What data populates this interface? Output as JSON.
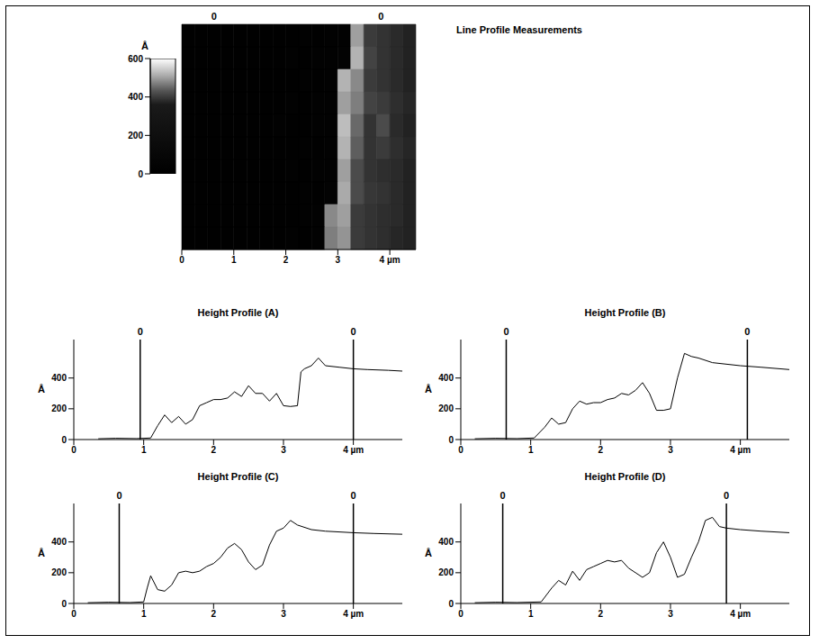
{
  "chart_data": [
    {
      "type": "heatmap",
      "title": "Line Profile Measurements",
      "x": [
        0.125,
        0.375,
        0.625,
        0.875,
        1.125,
        1.375,
        1.625,
        1.875,
        2.125,
        2.375,
        2.625,
        2.875,
        3.125,
        3.375,
        3.625,
        3.875,
        4.125,
        4.375
      ],
      "y": [
        4.275,
        3.825,
        3.375,
        2.925,
        2.475,
        2.025,
        1.575,
        1.125,
        0.675,
        0.225
      ],
      "cells": [
        [
          15,
          15,
          18,
          15,
          20,
          15,
          18,
          20,
          18,
          22,
          20,
          25,
          30,
          500,
          400,
          390,
          380,
          370
        ],
        [
          15,
          18,
          15,
          20,
          18,
          15,
          20,
          18,
          22,
          20,
          25,
          22,
          35,
          520,
          410,
          390,
          380,
          370
        ],
        [
          15,
          15,
          18,
          15,
          20,
          18,
          15,
          20,
          18,
          22,
          20,
          25,
          520,
          480,
          400,
          390,
          380,
          370
        ],
        [
          18,
          15,
          15,
          20,
          15,
          18,
          20,
          15,
          22,
          18,
          25,
          22,
          500,
          470,
          410,
          400,
          385,
          375
        ],
        [
          15,
          18,
          15,
          15,
          20,
          15,
          18,
          22,
          18,
          20,
          22,
          25,
          530,
          450,
          390,
          420,
          380,
          370
        ],
        [
          15,
          15,
          18,
          15,
          18,
          20,
          15,
          18,
          20,
          22,
          20,
          28,
          520,
          440,
          390,
          400,
          385,
          375
        ],
        [
          18,
          15,
          15,
          18,
          15,
          20,
          18,
          15,
          22,
          20,
          25,
          30,
          500,
          420,
          390,
          385,
          380,
          370
        ],
        [
          15,
          18,
          15,
          15,
          20,
          15,
          18,
          20,
          18,
          22,
          20,
          35,
          510,
          420,
          395,
          390,
          380,
          370
        ],
        [
          15,
          15,
          18,
          15,
          18,
          20,
          15,
          18,
          20,
          22,
          25,
          480,
          500,
          400,
          390,
          385,
          380,
          370
        ],
        [
          15,
          18,
          15,
          18,
          15,
          20,
          18,
          20,
          22,
          20,
          25,
          470,
          490,
          400,
          390,
          385,
          375,
          370
        ]
      ],
      "xlim": [
        0,
        4.5
      ],
      "ylim": [
        0,
        4.5
      ],
      "xticks": [
        0,
        1,
        2,
        3,
        {
          "value": 4,
          "label": "4 µm"
        }
      ],
      "tick_labels": "x",
      "colorbar": {
        "label": "Å",
        "range": [
          0,
          600
        ],
        "ticks": [
          0,
          200,
          400,
          600
        ]
      },
      "cursors": [
        {
          "x": 0.62,
          "label": "0"
        },
        {
          "x": 3.83,
          "label": "0"
        }
      ]
    },
    {
      "type": "line",
      "title": "Height Profile (A)",
      "y_label": "Å",
      "color": "#000000",
      "x": [
        0.35,
        0.6,
        0.9,
        1.1,
        1.2,
        1.3,
        1.4,
        1.5,
        1.6,
        1.7,
        1.8,
        1.9,
        2.0,
        2.1,
        2.2,
        2.3,
        2.4,
        2.5,
        2.6,
        2.7,
        2.8,
        2.9,
        3.0,
        3.1,
        3.2,
        3.25,
        3.3,
        3.4,
        3.5,
        3.6,
        3.8,
        4.0,
        4.2,
        4.5,
        4.7
      ],
      "values": [
        5,
        8,
        6,
        10,
        90,
        160,
        110,
        150,
        100,
        130,
        220,
        240,
        260,
        260,
        270,
        310,
        280,
        350,
        300,
        300,
        250,
        300,
        220,
        215,
        220,
        440,
        460,
        480,
        530,
        480,
        470,
        460,
        455,
        450,
        445
      ],
      "xlim": [
        0,
        4.7
      ],
      "ylim": [
        0,
        650
      ],
      "xticks": [
        0,
        1,
        2,
        3,
        {
          "value": 4,
          "label": "4 µm"
        }
      ],
      "yticks": [
        0,
        200,
        400
      ],
      "cursors": [
        {
          "x": 0.95,
          "label": "0"
        },
        {
          "x": 4.0,
          "label": "0"
        }
      ]
    },
    {
      "type": "line",
      "title": "Height Profile (B)",
      "y_label": "Å",
      "color": "#000000",
      "x": [
        0.2,
        0.5,
        0.8,
        1.05,
        1.2,
        1.3,
        1.4,
        1.5,
        1.6,
        1.7,
        1.8,
        1.9,
        2.0,
        2.1,
        2.2,
        2.3,
        2.4,
        2.5,
        2.6,
        2.7,
        2.8,
        2.9,
        3.0,
        3.1,
        3.2,
        3.3,
        3.4,
        3.6,
        4.0,
        4.3,
        4.7
      ],
      "values": [
        5,
        8,
        6,
        10,
        80,
        140,
        100,
        110,
        200,
        250,
        230,
        240,
        240,
        260,
        270,
        300,
        290,
        320,
        370,
        300,
        190,
        190,
        200,
        400,
        560,
        540,
        530,
        500,
        480,
        470,
        455
      ],
      "xlim": [
        0,
        4.7
      ],
      "ylim": [
        0,
        650
      ],
      "xticks": [
        0,
        1,
        2,
        3,
        {
          "value": 4,
          "label": "4 µm"
        }
      ],
      "yticks": [
        0,
        200,
        400
      ],
      "cursors": [
        {
          "x": 0.65,
          "label": "0"
        },
        {
          "x": 4.1,
          "label": "0"
        }
      ]
    },
    {
      "type": "line",
      "title": "Height Profile (C)",
      "y_label": "Å",
      "color": "#000000",
      "x": [
        0.2,
        0.5,
        0.8,
        1.0,
        1.05,
        1.1,
        1.2,
        1.3,
        1.4,
        1.5,
        1.6,
        1.7,
        1.8,
        1.9,
        2.0,
        2.1,
        2.2,
        2.3,
        2.4,
        2.5,
        2.6,
        2.7,
        2.8,
        2.9,
        3.0,
        3.1,
        3.2,
        3.4,
        3.6,
        4.0,
        4.3,
        4.7
      ],
      "values": [
        5,
        8,
        6,
        10,
        100,
        180,
        90,
        80,
        120,
        200,
        210,
        200,
        210,
        240,
        260,
        300,
        360,
        390,
        350,
        270,
        220,
        250,
        380,
        470,
        490,
        540,
        510,
        480,
        470,
        460,
        455,
        450
      ],
      "xlim": [
        0,
        4.7
      ],
      "ylim": [
        0,
        650
      ],
      "xticks": [
        0,
        1,
        2,
        3,
        {
          "value": 4,
          "label": "4 µm"
        }
      ],
      "yticks": [
        0,
        200,
        400
      ],
      "cursors": [
        {
          "x": 0.65,
          "label": "0"
        },
        {
          "x": 4.0,
          "label": "0"
        }
      ]
    },
    {
      "type": "line",
      "title": "Height Profile (D)",
      "y_label": "Å",
      "color": "#000000",
      "x": [
        0.2,
        0.5,
        0.8,
        1.15,
        1.3,
        1.4,
        1.5,
        1.6,
        1.7,
        1.8,
        1.9,
        2.0,
        2.1,
        2.2,
        2.3,
        2.4,
        2.5,
        2.6,
        2.7,
        2.8,
        2.9,
        3.0,
        3.1,
        3.2,
        3.3,
        3.4,
        3.5,
        3.6,
        3.7,
        3.8,
        4.0,
        4.3,
        4.7
      ],
      "values": [
        5,
        8,
        6,
        10,
        100,
        150,
        120,
        210,
        150,
        220,
        240,
        260,
        280,
        270,
        280,
        230,
        200,
        170,
        200,
        330,
        400,
        300,
        170,
        190,
        300,
        400,
        540,
        560,
        500,
        490,
        480,
        470,
        460
      ],
      "xlim": [
        0,
        4.7
      ],
      "ylim": [
        0,
        650
      ],
      "xticks": [
        0,
        1,
        2,
        3,
        {
          "value": 4,
          "label": "4 µm"
        }
      ],
      "yticks": [
        0,
        200,
        400
      ],
      "cursors": [
        {
          "x": 0.6,
          "label": "0"
        },
        {
          "x": 3.8,
          "label": "0"
        }
      ]
    }
  ]
}
